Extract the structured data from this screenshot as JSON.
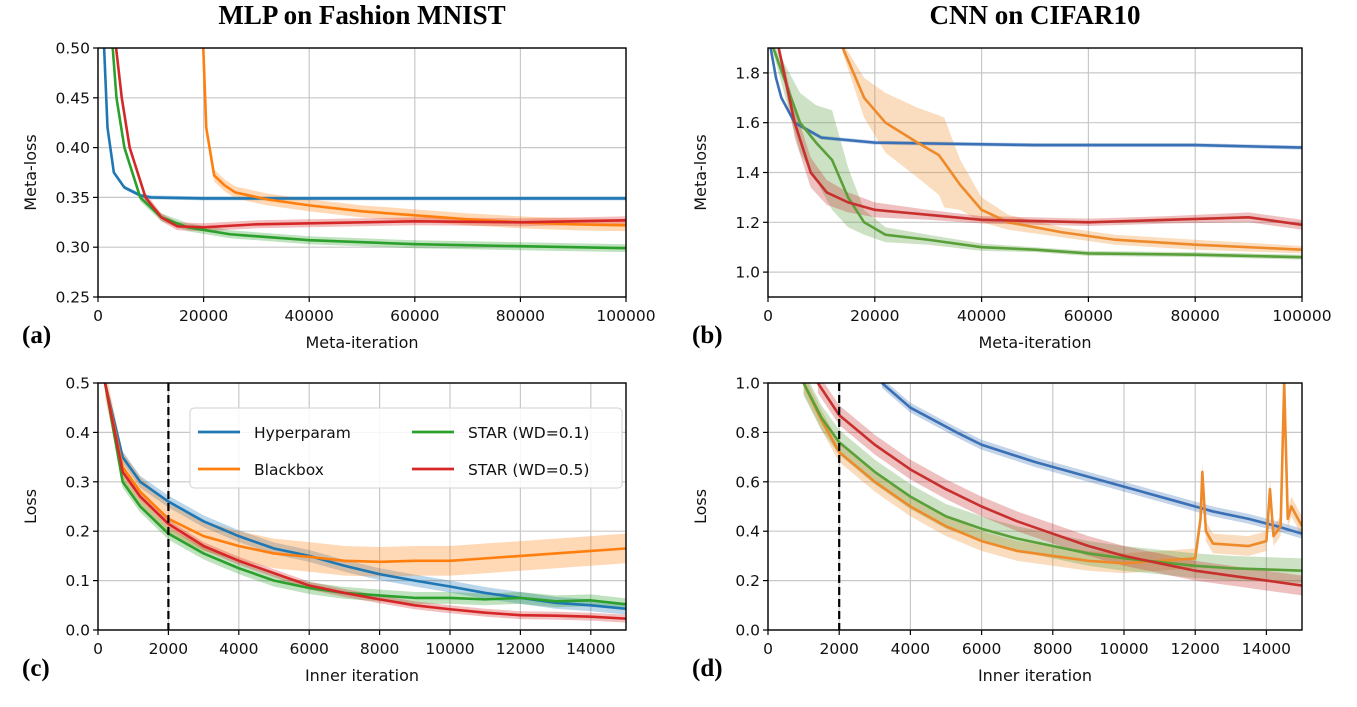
{
  "chart_data": [
    {
      "type": "line",
      "title": "MLP on Fashion MNIST",
      "panel_label": "(a)",
      "xlabel": "Meta-iteration",
      "ylabel": "Meta-loss",
      "xlim": [
        0,
        100000
      ],
      "ylim": [
        0.25,
        0.5
      ],
      "xticks": [
        "0",
        "20000",
        "40000",
        "60000",
        "80000",
        "100000"
      ],
      "xtick_values": [
        0,
        20000,
        40000,
        60000,
        80000,
        100000
      ],
      "yticks": [
        "0.25",
        "0.30",
        "0.35",
        "0.40",
        "0.45",
        "0.50"
      ],
      "ytick_values": [
        0.25,
        0.3,
        0.35,
        0.4,
        0.45,
        0.5
      ],
      "grid": true,
      "series": [
        {
          "key": "hyperparam",
          "color": "#1f77b4",
          "band": 0.002,
          "x": [
            1000,
            1800,
            3000,
            5000,
            8000,
            10000,
            20000,
            40000,
            60000,
            80000,
            100000
          ],
          "y": [
            0.52,
            0.42,
            0.375,
            0.36,
            0.352,
            0.35,
            0.349,
            0.349,
            0.349,
            0.349,
            0.349
          ]
        },
        {
          "key": "blackbox",
          "color": "#ff7f0e",
          "band": 0.006,
          "x": [
            19800,
            20500,
            22000,
            24000,
            26000,
            32000,
            40000,
            50000,
            60000,
            70000,
            80000,
            90000,
            100000
          ],
          "y": [
            0.52,
            0.42,
            0.372,
            0.362,
            0.355,
            0.348,
            0.342,
            0.336,
            0.332,
            0.328,
            0.325,
            0.323,
            0.322
          ]
        },
        {
          "key": "star01",
          "color": "#2ca02c",
          "band": 0.004,
          "x": [
            2500,
            3500,
            5000,
            8000,
            12000,
            17000,
            25000,
            40000,
            60000,
            80000,
            100000
          ],
          "y": [
            0.52,
            0.45,
            0.4,
            0.35,
            0.33,
            0.32,
            0.313,
            0.307,
            0.303,
            0.301,
            0.299
          ]
        },
        {
          "key": "star05",
          "color": "#d62728",
          "band": 0.004,
          "x": [
            3000,
            4500,
            6000,
            9000,
            12000,
            15000,
            20000,
            30000,
            40000,
            60000,
            80000,
            100000
          ],
          "y": [
            0.52,
            0.45,
            0.4,
            0.35,
            0.33,
            0.321,
            0.32,
            0.323,
            0.324,
            0.326,
            0.325,
            0.327
          ]
        }
      ]
    },
    {
      "type": "line",
      "title": "CNN on CIFAR10",
      "panel_label": "(b)",
      "xlabel": "Meta-iteration",
      "ylabel": "Meta-loss",
      "xlim": [
        0,
        100000
      ],
      "ylim": [
        0.9,
        1.9
      ],
      "xticks": [
        "0",
        "20000",
        "40000",
        "60000",
        "80000",
        "100000"
      ],
      "xtick_values": [
        0,
        20000,
        40000,
        60000,
        80000,
        100000
      ],
      "yticks": [
        "1.0",
        "1.2",
        "1.4",
        "1.6",
        "1.8"
      ],
      "ytick_values": [
        1.0,
        1.2,
        1.4,
        1.6,
        1.8
      ],
      "grid": true,
      "series": [
        {
          "key": "hyperparam",
          "color": "#3a70b5",
          "band": 0.008,
          "x": [
            500,
            1500,
            2500,
            5000,
            10000,
            20000,
            35000,
            50000,
            80000,
            100000
          ],
          "y": [
            1.9,
            1.78,
            1.7,
            1.6,
            1.54,
            1.52,
            1.515,
            1.51,
            1.51,
            1.5
          ]
        },
        {
          "key": "blackbox",
          "color": "#ee8a2a",
          "band": [
            0.02,
            0.08,
            0.12,
            0.14,
            0.16,
            0.18,
            0.1,
            0.05,
            0.03,
            0.02,
            0.02,
            0.02,
            0.015
          ],
          "x": [
            14000,
            18000,
            22000,
            28000,
            32000,
            33000,
            36000,
            40000,
            45000,
            55000,
            65000,
            80000,
            100000
          ],
          "y": [
            1.9,
            1.7,
            1.6,
            1.52,
            1.47,
            1.44,
            1.35,
            1.25,
            1.2,
            1.16,
            1.13,
            1.11,
            1.09
          ]
        },
        {
          "key": "star01",
          "color": "#5aa03a",
          "band": [
            0.02,
            0.12,
            0.15,
            0.2,
            0.12,
            0.05,
            0.03,
            0.02,
            0.015,
            0.01,
            0.01,
            0.01,
            0.01
          ],
          "x": [
            1000,
            6000,
            9000,
            12000,
            15000,
            18000,
            22000,
            30000,
            40000,
            50000,
            60000,
            80000,
            100000
          ],
          "y": [
            1.9,
            1.6,
            1.52,
            1.45,
            1.3,
            1.2,
            1.15,
            1.13,
            1.1,
            1.09,
            1.075,
            1.07,
            1.06
          ]
        },
        {
          "key": "star05",
          "color": "#c8302e",
          "band": [
            0.02,
            0.06,
            0.06,
            0.05,
            0.04,
            0.03,
            0.02,
            0.015,
            0.015,
            0.015,
            0.02,
            0.02
          ],
          "x": [
            2000,
            5000,
            8000,
            11000,
            15000,
            20000,
            30000,
            40000,
            60000,
            75000,
            90000,
            100000
          ],
          "y": [
            1.9,
            1.6,
            1.4,
            1.32,
            1.28,
            1.25,
            1.23,
            1.21,
            1.2,
            1.21,
            1.22,
            1.19
          ]
        }
      ]
    },
    {
      "type": "line",
      "title": "",
      "panel_label": "(c)",
      "xlabel": "Inner iteration",
      "ylabel": "Loss",
      "xlim": [
        0,
        15000
      ],
      "ylim": [
        0.0,
        0.5
      ],
      "xticks": [
        "0",
        "2000",
        "4000",
        "6000",
        "8000",
        "10000",
        "12000",
        "14000"
      ],
      "xtick_values": [
        0,
        2000,
        4000,
        6000,
        8000,
        10000,
        12000,
        14000
      ],
      "yticks": [
        "0.0",
        "0.1",
        "0.2",
        "0.3",
        "0.4",
        "0.5"
      ],
      "ytick_values": [
        0.0,
        0.1,
        0.2,
        0.3,
        0.4,
        0.5
      ],
      "grid": true,
      "vline_dashed_x": 2000,
      "legend": {
        "placement": "top-right",
        "columns": 2
      },
      "series": [
        {
          "key": "hyperparam",
          "name": "Hyperparam",
          "color": "#1f77b4",
          "band": 0.012,
          "x": [
            200,
            700,
            1200,
            2000,
            3000,
            4000,
            5000,
            6000,
            7000,
            8000,
            9000,
            10000,
            11000,
            12000,
            13000,
            14000,
            15000
          ],
          "y": [
            0.5,
            0.35,
            0.3,
            0.26,
            0.22,
            0.19,
            0.165,
            0.15,
            0.13,
            0.113,
            0.1,
            0.088,
            0.075,
            0.065,
            0.055,
            0.05,
            0.043
          ]
        },
        {
          "key": "blackbox",
          "name": "Blackbox",
          "color": "#ff7f0e",
          "band": 0.03,
          "x": [
            200,
            700,
            1200,
            2000,
            3000,
            4000,
            5000,
            6000,
            7000,
            8000,
            9000,
            10000,
            11000,
            12000,
            13000,
            14000,
            15000
          ],
          "y": [
            0.5,
            0.33,
            0.28,
            0.225,
            0.19,
            0.17,
            0.155,
            0.148,
            0.14,
            0.138,
            0.14,
            0.14,
            0.145,
            0.15,
            0.155,
            0.16,
            0.165
          ]
        },
        {
          "key": "star01",
          "name": "STAR (WD=0.1)",
          "color": "#2ca02c",
          "band": 0.012,
          "x": [
            200,
            700,
            1200,
            2000,
            3000,
            4000,
            5000,
            6000,
            7000,
            8000,
            9000,
            10000,
            11000,
            12000,
            13000,
            14000,
            15000
          ],
          "y": [
            0.5,
            0.3,
            0.25,
            0.195,
            0.155,
            0.125,
            0.1,
            0.085,
            0.075,
            0.07,
            0.065,
            0.065,
            0.062,
            0.065,
            0.058,
            0.06,
            0.052
          ]
        },
        {
          "key": "star05",
          "name": "STAR (WD=0.5)",
          "color": "#d62728",
          "band": 0.008,
          "x": [
            200,
            700,
            1200,
            2000,
            3000,
            4000,
            5000,
            6000,
            7000,
            8000,
            9000,
            10000,
            11000,
            12000,
            13000,
            14000,
            15000
          ],
          "y": [
            0.5,
            0.32,
            0.27,
            0.215,
            0.17,
            0.14,
            0.115,
            0.09,
            0.075,
            0.062,
            0.05,
            0.042,
            0.035,
            0.03,
            0.029,
            0.027,
            0.023
          ]
        }
      ]
    },
    {
      "type": "line",
      "title": "",
      "panel_label": "(d)",
      "xlabel": "Inner iteration",
      "ylabel": "Loss",
      "xlim": [
        0,
        15000
      ],
      "ylim": [
        0.0,
        1.0
      ],
      "xticks": [
        "0",
        "2000",
        "4000",
        "6000",
        "8000",
        "10000",
        "12000",
        "14000"
      ],
      "xtick_values": [
        0,
        2000,
        4000,
        6000,
        8000,
        10000,
        12000,
        14000
      ],
      "yticks": [
        "0.0",
        "0.2",
        "0.4",
        "0.6",
        "0.8",
        "1.0"
      ],
      "ytick_values": [
        0.0,
        0.2,
        0.4,
        0.6,
        0.8,
        1.0
      ],
      "grid": true,
      "vline_dashed_x": 2000,
      "series": [
        {
          "key": "hyperparam",
          "color": "#3a70b5",
          "band": 0.02,
          "x": [
            3200,
            4000,
            5300,
            6000,
            7500,
            8500,
            9500,
            10500,
            11500,
            12500,
            13500,
            14300,
            15000
          ],
          "y": [
            1.0,
            0.9,
            0.8,
            0.75,
            0.68,
            0.64,
            0.6,
            0.56,
            0.52,
            0.48,
            0.45,
            0.42,
            0.39
          ]
        },
        {
          "key": "blackbox",
          "color": "#ee8a2a",
          "band": 0.04,
          "x": [
            1000,
            1500,
            2000,
            3000,
            4000,
            5000,
            6000,
            7000,
            8000,
            9000,
            10000,
            11000,
            12000,
            12150,
            12200,
            12300,
            12500,
            13500,
            14000,
            14100,
            14200,
            14400,
            14500,
            14600,
            14700,
            15000
          ],
          "y": [
            1.0,
            0.85,
            0.72,
            0.6,
            0.5,
            0.42,
            0.36,
            0.32,
            0.3,
            0.28,
            0.27,
            0.28,
            0.29,
            0.45,
            0.64,
            0.4,
            0.35,
            0.34,
            0.36,
            0.57,
            0.38,
            0.42,
            1.0,
            0.45,
            0.5,
            0.42
          ]
        },
        {
          "key": "star01",
          "color": "#5aa03a",
          "band": 0.05,
          "x": [
            1000,
            1500,
            2000,
            3000,
            4000,
            5000,
            6000,
            7000,
            8000,
            9000,
            10000,
            11000,
            12000,
            13000,
            14000,
            15000
          ],
          "y": [
            1.0,
            0.86,
            0.76,
            0.64,
            0.54,
            0.46,
            0.41,
            0.37,
            0.34,
            0.31,
            0.29,
            0.275,
            0.26,
            0.25,
            0.245,
            0.24
          ]
        },
        {
          "key": "star05",
          "color": "#c8302e",
          "band": 0.04,
          "x": [
            1400,
            2000,
            3000,
            4000,
            5000,
            6000,
            7000,
            8000,
            9000,
            10000,
            11000,
            12000,
            13000,
            14000,
            15000
          ],
          "y": [
            1.0,
            0.87,
            0.75,
            0.65,
            0.57,
            0.5,
            0.44,
            0.39,
            0.34,
            0.3,
            0.27,
            0.24,
            0.22,
            0.2,
            0.18
          ]
        }
      ]
    }
  ]
}
